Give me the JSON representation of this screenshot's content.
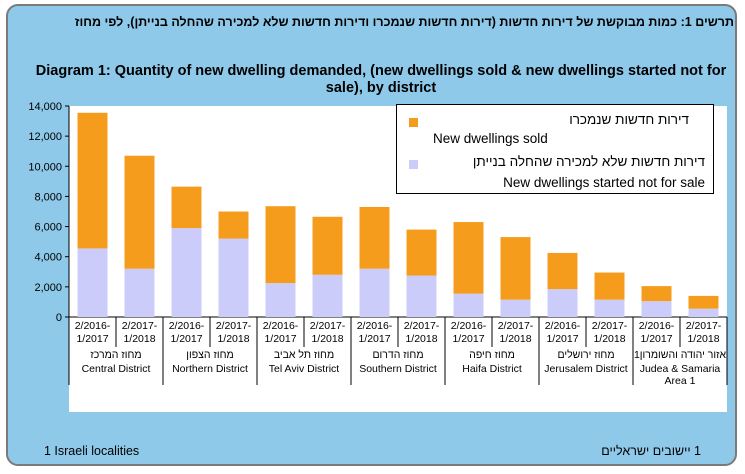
{
  "title_he": "תרשים 1: כמות מבוקשת של דירות חדשות (דירות חדשות שנמכרו ודירות חדשות שלא למכירה שהחלה בנייתן), לפי מחוז",
  "title_en": "Diagram 1:  Quantity of new dwelling demanded, (new dwellings sold & new dwellings started not for sale), by district",
  "legend": {
    "sold_he": "דירות חדשות שנמכרו",
    "sold_en": "New dwellings sold",
    "notsale_he": "דירות חדשות שלא למכירה שהחלה בנייתן",
    "notsale_en": "New dwellings started not for sale"
  },
  "footnote_en": "1 Israeli localities",
  "footnote_he": "1 יישובים ישראליים",
  "colors": {
    "sold": "#f59c1c",
    "not_for_sale": "#ccccfa",
    "plot_bg": "#ffffff",
    "frame_bg": "#8ec9ea"
  },
  "chart_data": {
    "type": "bar",
    "stacked": true,
    "ylim": [
      0,
      14000
    ],
    "yticks": [
      0,
      2000,
      4000,
      6000,
      8000,
      10000,
      12000,
      14000
    ],
    "ytick_labels": [
      "0",
      "2,000",
      "4,000",
      "6,000",
      "8,000",
      "10,000",
      "12,000",
      "14,000"
    ],
    "grid": false,
    "legend_position": "top-right",
    "periods": [
      [
        "2/2016-",
        "1/2017"
      ],
      [
        "2/2017-",
        "1/2018"
      ]
    ],
    "districts": [
      {
        "he": "מחוז המרכז",
        "en": "Central District"
      },
      {
        "he": "מחוז הצפון",
        "en": "Northern District"
      },
      {
        "he": "מחוז תל אביב",
        "en": "Tel Aviv District"
      },
      {
        "he": "מחוז הדרום",
        "en": "Southern District"
      },
      {
        "he": "מחוז חיפה",
        "en": "Haifa District"
      },
      {
        "he": "מחוז ירושלים",
        "en": "Jerusalem District"
      },
      {
        "he": "אזור יהודה והשומרון1",
        "en": "Judea & Samaria Area 1"
      }
    ],
    "series": [
      {
        "name": "New dwellings started not for sale",
        "values": [
          4550,
          3200,
          5900,
          5200,
          2250,
          2800,
          3200,
          2750,
          1550,
          1150,
          1850,
          1150,
          1050,
          550
        ]
      },
      {
        "name": "New dwellings sold",
        "values": [
          9000,
          7500,
          2750,
          1800,
          5100,
          3850,
          4100,
          3050,
          4750,
          4150,
          2400,
          1800,
          1000,
          850
        ]
      }
    ]
  }
}
